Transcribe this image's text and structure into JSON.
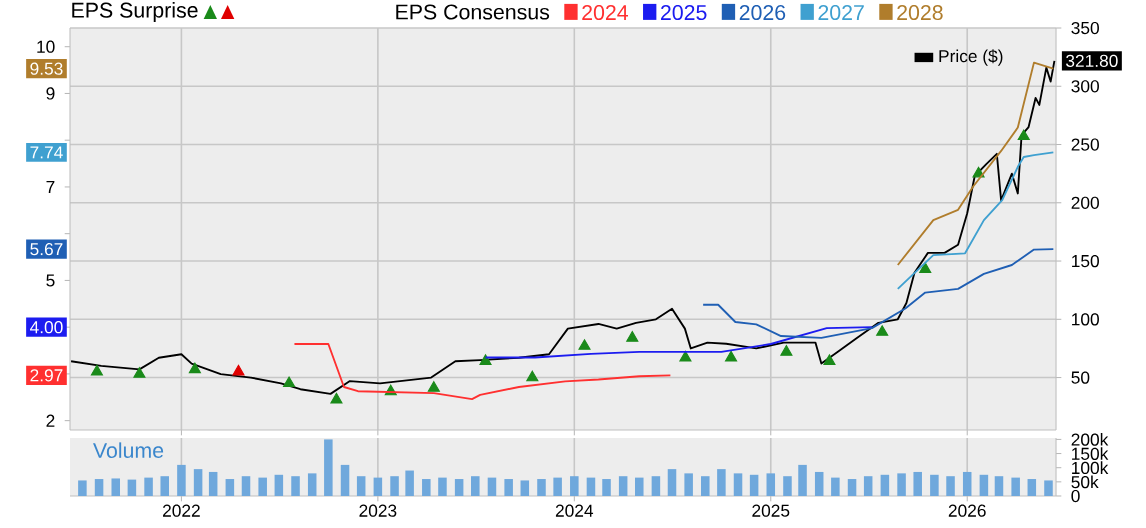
{
  "chart_data": [
    {
      "type": "line",
      "title": "EPS Surprise",
      "legend_title": "EPS Consensus",
      "legend": "top",
      "grid": true,
      "tick_labels": "y",
      "annotations": [
        {
          "text": "9.53",
          "y": 9.53
        },
        {
          "text": "7.74",
          "y": 7.74
        },
        {
          "text": "5.67",
          "y": 5.67
        },
        {
          "text": "4.00",
          "y": 4.0
        },
        {
          "text": "2.97",
          "y": 2.97
        }
      ],
      "xlim": [
        "2021-06-08",
        "2026-06-15"
      ],
      "xticks": [
        "2022",
        "2023",
        "2024",
        "2025",
        "2026"
      ],
      "ylim": [
        1.8,
        10.4
      ],
      "yticks": [
        2,
        {
          "value": 3,
          "label": null
        },
        {
          "value": 4,
          "label": null
        },
        5,
        {
          "value": 6,
          "label": null
        },
        7,
        {
          "value": 8,
          "label": null
        },
        9,
        10
      ],
      "y2lim": [
        5,
        350
      ],
      "y2ticks": [
        50,
        100,
        150,
        200,
        250,
        300,
        350
      ],
      "series": [
        {
          "name": "2024",
          "color": "#ff3030",
          "x": [
            "2022-07-30",
            "2022-10-01",
            "2022-10-30",
            "2022-11-25",
            "2023-04-15",
            "2023-06-25",
            "2023-07-10",
            "2023-09-20",
            "2023-12-15",
            "2024-02-15",
            "2024-05-01",
            "2024-06-28"
          ],
          "values": [
            3.64,
            3.64,
            2.72,
            2.63,
            2.59,
            2.46,
            2.55,
            2.72,
            2.84,
            2.88,
            2.95,
            2.97
          ]
        },
        {
          "name": "2025",
          "color": "#1c1cf0",
          "x": [
            "2023-07-20",
            "2023-10-20",
            "2024-02-01",
            "2024-05-01",
            "2024-10-01",
            "2025-01-01",
            "2025-04-15",
            "2025-07-08"
          ],
          "values": [
            3.35,
            3.35,
            3.43,
            3.47,
            3.47,
            3.64,
            3.98,
            4.0
          ]
        },
        {
          "name": "2026",
          "color": "#1f5fb4",
          "x": [
            "2024-08-28",
            "2024-09-25",
            "2024-10-27",
            "2024-12-05",
            "2025-01-20",
            "2025-04-05",
            "2025-07-08",
            "2025-09-08",
            "2025-10-15",
            "2025-12-15",
            "2026-02-01",
            "2026-03-25",
            "2026-05-05",
            "2026-06-10"
          ],
          "values": [
            4.48,
            4.48,
            4.11,
            4.06,
            3.81,
            3.77,
            3.98,
            4.4,
            4.74,
            4.82,
            5.14,
            5.33,
            5.66,
            5.67
          ]
        },
        {
          "name": "2027",
          "color": "#3fa0d0",
          "x": [
            "2025-08-25",
            "2025-10-30",
            "2025-12-28",
            "2026-02-01",
            "2026-03-07",
            "2026-04-05",
            "2026-04-16",
            "2026-05-05",
            "2026-06-10"
          ],
          "values": [
            4.82,
            5.54,
            5.58,
            6.29,
            6.72,
            7.43,
            7.64,
            7.68,
            7.74
          ]
        },
        {
          "name": "2028",
          "color": "#b07d2c",
          "x": [
            "2025-08-25",
            "2025-10-30",
            "2025-12-15",
            "2026-01-12",
            "2026-03-05",
            "2026-04-05",
            "2026-05-05",
            "2026-06-10"
          ],
          "values": [
            5.33,
            6.29,
            6.51,
            7.01,
            7.77,
            8.27,
            9.66,
            9.53
          ]
        },
        {
          "name": "Price ($)",
          "axis": "y2",
          "color": "#000000",
          "x": [
            "2021-06-10",
            "2021-08-05",
            "2021-10-15",
            "2021-11-20",
            "2022-01-01",
            "2022-01-20",
            "2022-03-15",
            "2022-05-10",
            "2022-07-05",
            "2022-08-10",
            "2022-10-05",
            "2022-11-10",
            "2023-01-05",
            "2023-04-10",
            "2023-05-25",
            "2023-07-10",
            "2023-09-20",
            "2023-11-15",
            "2023-12-20",
            "2024-02-15",
            "2024-03-20",
            "2024-04-25",
            "2024-06-01",
            "2024-07-01",
            "2024-07-25",
            "2024-08-05",
            "2024-09-05",
            "2024-10-10",
            "2024-12-05",
            "2025-01-25",
            "2025-03-25",
            "2025-04-05",
            "2025-05-05",
            "2025-06-10",
            "2025-07-20",
            "2025-08-25",
            "2025-09-10",
            "2025-09-25",
            "2025-10-20",
            "2025-11-20",
            "2025-12-15",
            "2026-01-01",
            "2026-01-15",
            "2026-02-05",
            "2026-02-25",
            "2026-03-05",
            "2026-03-25",
            "2026-04-05",
            "2026-04-12",
            "2026-04-25",
            "2026-05-08",
            "2026-05-15",
            "2026-05-28",
            "2026-06-05",
            "2026-06-12"
          ],
          "values": [
            64,
            60,
            57,
            67,
            70,
            62,
            53,
            50,
            45,
            40,
            36,
            47,
            45,
            50,
            64,
            65,
            67,
            70,
            92,
            96,
            92,
            97,
            100,
            109,
            92,
            75,
            80,
            79,
            75,
            80,
            80,
            62,
            72,
            84,
            97,
            100,
            114,
            140,
            157,
            157,
            164,
            191,
            223,
            233,
            242,
            202,
            225,
            208,
            258,
            265,
            290,
            284,
            316,
            304,
            321.8
          ],
          "value_labels": [
            null,
            null,
            null,
            null,
            null,
            null,
            null,
            null,
            null,
            null,
            null,
            null,
            null,
            null,
            null,
            null,
            null,
            null,
            null,
            null,
            null,
            null,
            null,
            null,
            null,
            null,
            null,
            null,
            null,
            null,
            null,
            null,
            null,
            null,
            null,
            null,
            null,
            null,
            null,
            null,
            null,
            null,
            null,
            null,
            null,
            null,
            null,
            null,
            null,
            null,
            null,
            null,
            null,
            null,
            "321.80"
          ]
        },
        {
          "type": "scatter",
          "axis": "y2",
          "marker": "triangle",
          "color": "#1a8a1a",
          "x": [
            "2021-07-28",
            "2021-10-15",
            "2022-01-26",
            "2022-07-20",
            "2022-10-16",
            "2023-01-25",
            "2023-04-15",
            "2023-07-20",
            "2023-10-15",
            "2024-01-20",
            "2024-04-18",
            "2024-07-26",
            "2024-10-19",
            "2025-01-30",
            "2025-04-20",
            "2025-07-27",
            "2025-10-15",
            "2026-01-22",
            "2026-04-16"
          ],
          "values": [
            55,
            53,
            57,
            45,
            31,
            38,
            41,
            64,
            50,
            77,
            84,
            67,
            67,
            72,
            64,
            89,
            143,
            225,
            257
          ]
        },
        {
          "type": "scatter",
          "axis": "y2",
          "marker": "triangle",
          "color": "#e00000",
          "x": [
            "2022-04-17"
          ],
          "values": [
            55
          ]
        }
      ]
    },
    {
      "type": "bar",
      "title": "Volume",
      "color": "#6fa8dc",
      "grid": "x",
      "xlim": [
        "2021-06-08",
        "2026-06-15"
      ],
      "xticks": [
        "2022",
        "2023",
        "2024",
        "2025",
        "2026"
      ],
      "ylim": [
        0,
        205000
      ],
      "yticks": [
        0,
        {
          "value": 50000,
          "label": "50k"
        },
        {
          "value": 100000,
          "label": "100k"
        },
        {
          "value": 150000,
          "label": "150k"
        },
        {
          "value": 200000,
          "label": "200k"
        }
      ],
      "x": [
        "2021-07",
        "2021-08",
        "2021-09",
        "2021-10",
        "2021-11",
        "2021-12",
        "2022-01",
        "2022-02",
        "2022-03",
        "2022-04",
        "2022-05",
        "2022-06",
        "2022-07",
        "2022-08",
        "2022-09",
        "2022-10",
        "2022-11",
        "2022-12",
        "2023-01",
        "2023-02",
        "2023-03",
        "2023-04",
        "2023-05",
        "2023-06",
        "2023-07",
        "2023-08",
        "2023-09",
        "2023-10",
        "2023-11",
        "2023-12",
        "2024-01",
        "2024-02",
        "2024-03",
        "2024-04",
        "2024-05",
        "2024-06",
        "2024-07",
        "2024-08",
        "2024-09",
        "2024-10",
        "2024-11",
        "2024-12",
        "2025-01",
        "2025-02",
        "2025-03",
        "2025-04",
        "2025-05",
        "2025-06",
        "2025-07",
        "2025-08",
        "2025-09",
        "2025-10",
        "2025-11",
        "2025-12",
        "2026-01",
        "2026-02",
        "2026-03",
        "2026-04",
        "2026-05",
        "2026-06"
      ],
      "values": [
        55000,
        60000,
        62000,
        58000,
        65000,
        70000,
        110000,
        95000,
        85000,
        60000,
        70000,
        65000,
        75000,
        70000,
        80000,
        200000,
        110000,
        70000,
        65000,
        70000,
        90000,
        60000,
        65000,
        60000,
        70000,
        65000,
        60000,
        55000,
        60000,
        65000,
        70000,
        65000,
        60000,
        70000,
        65000,
        70000,
        95000,
        80000,
        70000,
        95000,
        80000,
        75000,
        80000,
        70000,
        110000,
        85000,
        65000,
        60000,
        70000,
        75000,
        80000,
        85000,
        75000,
        70000,
        85000,
        75000,
        70000,
        65000,
        60000,
        55000
      ]
    }
  ]
}
